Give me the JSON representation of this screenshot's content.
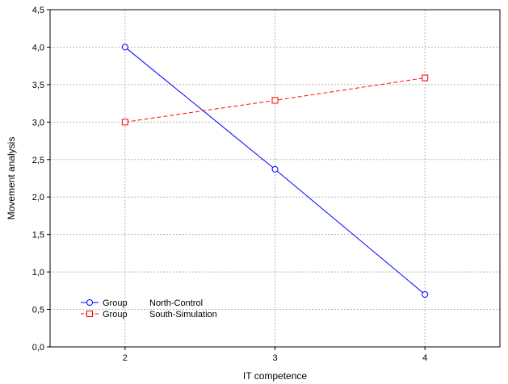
{
  "chart_data": {
    "type": "line",
    "title": "",
    "xlabel": "IT competence",
    "ylabel": "Movement analysis",
    "x": [
      2,
      3,
      4
    ],
    "xlim": [
      1.5,
      4.5
    ],
    "ylim": [
      0,
      4.5
    ],
    "x_ticks": [
      "2",
      "3",
      "4"
    ],
    "y_ticks": [
      "0,0",
      "0,5",
      "1,0",
      "1,5",
      "2,0",
      "2,5",
      "3,0",
      "3,5",
      "4,0",
      "4,5"
    ],
    "y_tick_values": [
      0,
      0.5,
      1,
      1.5,
      2,
      2.5,
      3,
      3.5,
      4,
      4.5
    ],
    "grid": true,
    "legend_position": "bottom-left",
    "series": [
      {
        "name": "North-Control",
        "legend_prefix": "Group",
        "values": [
          4.0,
          2.37,
          0.7
        ],
        "color": "#0000ff",
        "line_style": "solid",
        "marker": "circle"
      },
      {
        "name": "South-Simulation",
        "legend_prefix": "Group",
        "values": [
          3.0,
          3.29,
          3.59
        ],
        "color": "#ff0000",
        "line_style": "dashed",
        "marker": "square"
      }
    ]
  }
}
